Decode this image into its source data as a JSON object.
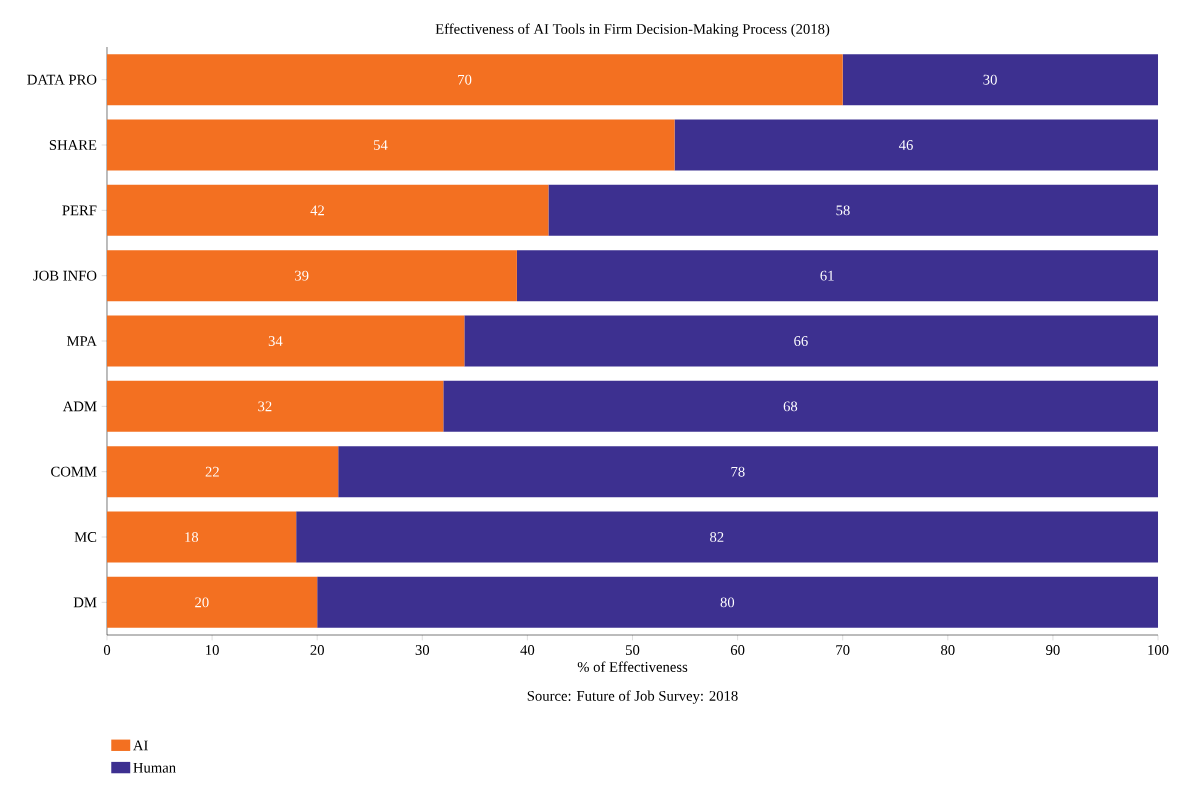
{
  "chart_data": {
    "type": "bar",
    "orientation": "horizontal",
    "stacked": true,
    "title": "Effectiveness of AI Tools in Firm Decision-Making Process (2018)",
    "xlabel": "% of Effectiveness",
    "annotations": [
      "Source: Future of Job Survey: 2018"
    ],
    "categories": [
      "DATA PRO",
      "SHARE",
      "PERF",
      "JOB INFO",
      "MPA",
      "ADM",
      "COMM",
      "MC",
      "DM"
    ],
    "series": [
      {
        "name": "AI",
        "color": "#f37021",
        "values": [
          70,
          54,
          42,
          39,
          34,
          32,
          22,
          18,
          20
        ]
      },
      {
        "name": "Human",
        "color": "#3d3090",
        "values": [
          30,
          46,
          58,
          61,
          66,
          68,
          78,
          82,
          80
        ]
      }
    ],
    "xlim": [
      0,
      100
    ],
    "xticks": [
      0,
      10,
      20,
      30,
      40,
      50,
      60,
      70,
      80,
      90,
      100
    ],
    "data_labels": true,
    "legend": "bottom left",
    "grid": false
  }
}
